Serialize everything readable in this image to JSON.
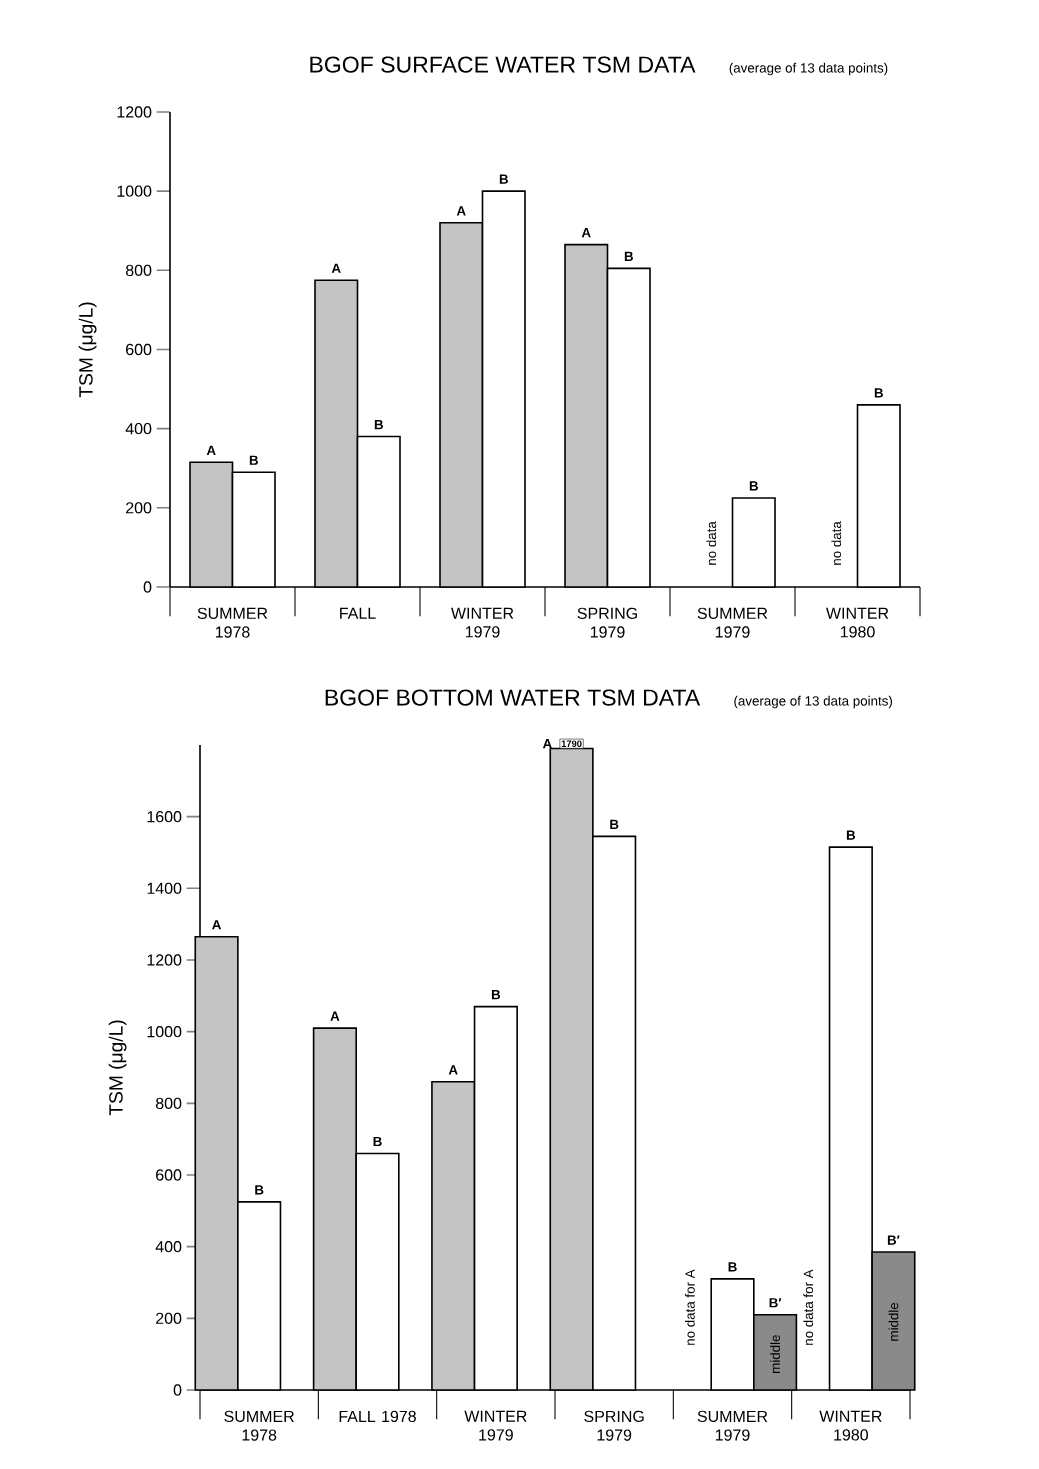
{
  "chart_data": [
    {
      "type": "bar",
      "title": "BGOF SURFACE WATER TSM DATA",
      "subtitle": "(average of 13 data points)",
      "ylabel": "TSM (μg/L)",
      "categories": [
        "SUMMER 1978",
        "FALL",
        "WINTER 1979",
        "SPRING 1979",
        "SUMMER 1979",
        "WINTER 1980"
      ],
      "series": [
        {
          "name": "A",
          "color": "#c4c4c4",
          "values": [
            315,
            775,
            920,
            865,
            null,
            null
          ]
        },
        {
          "name": "B",
          "color": "#ffffff",
          "values": [
            290,
            380,
            1000,
            805,
            225,
            460
          ]
        }
      ],
      "ylim": [
        0,
        1200
      ],
      "yticks": [
        0,
        200,
        400,
        600,
        800,
        1000,
        1200
      ],
      "annotations": [
        "no data",
        "no data"
      ]
    },
    {
      "type": "bar",
      "title": "BGOF BOTTOM WATER TSM DATA",
      "subtitle": "(average of 13 data points)",
      "ylabel": "TSM (μg/L)",
      "categories": [
        "SUMMER 1978",
        "FALL 1978",
        "WINTER 1979",
        "SPRING 1979",
        "SUMMER 1979",
        "WINTER 1980"
      ],
      "series": [
        {
          "name": "A",
          "color": "#c4c4c4",
          "values": [
            1265,
            1010,
            860,
            1790,
            null,
            null
          ],
          "value_labels": [
            null,
            null,
            null,
            "1790",
            null,
            null
          ]
        },
        {
          "name": "B",
          "color": "#ffffff",
          "values": [
            525,
            660,
            1070,
            1545,
            310,
            1515
          ]
        },
        {
          "name": "B′",
          "color": "#8a8a8a",
          "values": [
            null,
            null,
            null,
            null,
            210,
            385
          ]
        }
      ],
      "ylim": [
        0,
        1800
      ],
      "yticks": [
        0,
        200,
        400,
        600,
        800,
        1000,
        1200,
        1400,
        1600
      ],
      "annotations": [
        "no data for A",
        "middle",
        "no data for A",
        "middle"
      ]
    }
  ]
}
